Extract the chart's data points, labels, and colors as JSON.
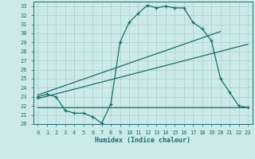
{
  "xlabel": "Humidex (Indice chaleur)",
  "background_color": "#cceaea",
  "grid_color": "#aacccc",
  "line_color": "#1a6b6b",
  "xlim": [
    -0.5,
    23.5
  ],
  "ylim": [
    20,
    33.5
  ],
  "xticks": [
    0,
    1,
    2,
    3,
    4,
    5,
    6,
    7,
    8,
    9,
    10,
    11,
    12,
    13,
    14,
    15,
    16,
    17,
    18,
    19,
    20,
    21,
    22,
    23
  ],
  "yticks": [
    20,
    21,
    22,
    23,
    24,
    25,
    26,
    27,
    28,
    29,
    30,
    31,
    32,
    33
  ],
  "main_line_x": [
    0,
    1,
    2,
    3,
    4,
    5,
    6,
    7,
    8,
    9,
    10,
    11,
    12,
    13,
    14,
    15,
    16,
    17,
    18,
    19,
    20,
    21,
    22,
    23
  ],
  "main_line_y": [
    23.0,
    23.3,
    23.0,
    21.5,
    21.2,
    21.2,
    20.8,
    20.1,
    22.2,
    29.0,
    31.2,
    32.2,
    33.1,
    32.8,
    33.0,
    32.8,
    32.8,
    31.2,
    30.5,
    29.2,
    25.0,
    23.5,
    22.0,
    21.8
  ],
  "upper_line_x": [
    0,
    20
  ],
  "upper_line_y": [
    23.2,
    30.2
  ],
  "lower_line_x": [
    0,
    23
  ],
  "lower_line_y": [
    22.8,
    28.8
  ],
  "flat_line_x": [
    0,
    23
  ],
  "flat_line_y": [
    21.8,
    21.8
  ],
  "xlabel_fontsize": 6.0,
  "tick_fontsize": 5.0
}
